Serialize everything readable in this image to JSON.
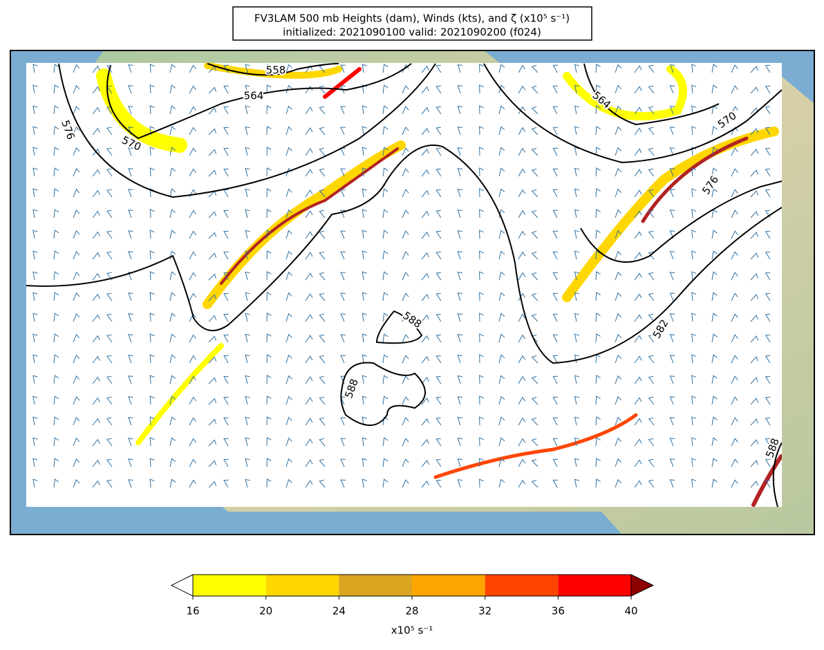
{
  "title": [
    "FV3LAM 500 mb Heights (dam), Winds (kts), and ζ (x10⁵ s⁻¹)",
    "initialized: 2021090100 valid: 2021090200 (f024)"
  ],
  "contour_labels": [
    558,
    564,
    570,
    576,
    564,
    570,
    576,
    582,
    588,
    588,
    588
  ],
  "colorbar": {
    "ticks": [
      16,
      20,
      24,
      28,
      32,
      36,
      40
    ],
    "colors": [
      "#ffff00",
      "#ffd700",
      "#daa520",
      "#ffa500",
      "#ff4500",
      "#ff0000"
    ],
    "under_color": "#ffffff",
    "over_color": "#8b0000",
    "label": "x10⁵ s⁻¹"
  }
}
